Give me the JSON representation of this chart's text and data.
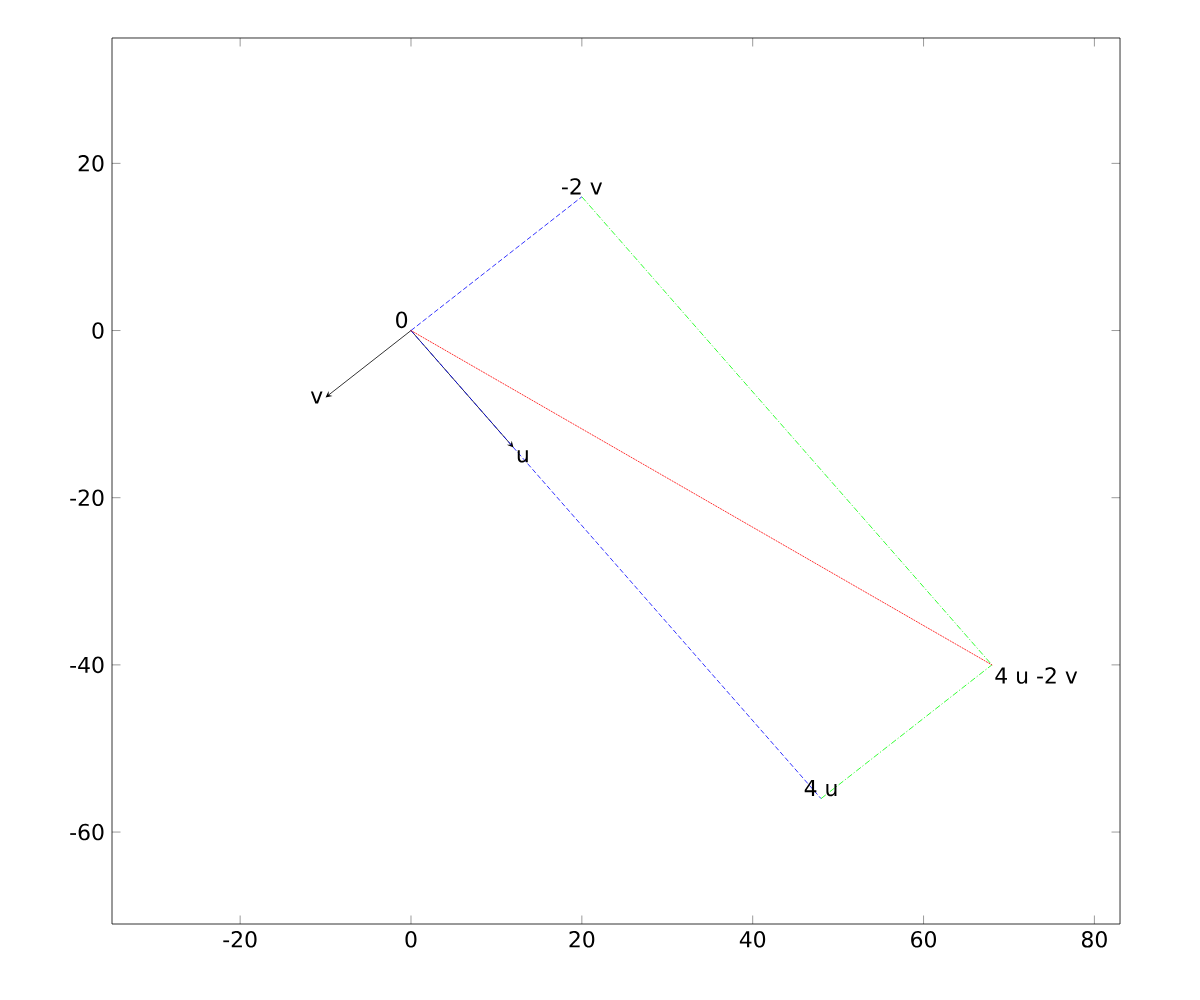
{
  "chart_data": {
    "type": "line",
    "series": [
      {
        "x": [
          0,
          -10
        ],
        "values": [
          0,
          -8
        ],
        "color": "#000000",
        "line_style": "solid"
      },
      {
        "x": [
          0,
          12
        ],
        "values": [
          0,
          -14
        ],
        "color": "#000000",
        "line_style": "solid"
      },
      {
        "x": [
          0,
          20
        ],
        "values": [
          0,
          16
        ],
        "color": "#0000ff",
        "line_style": "dashed"
      },
      {
        "x": [
          0,
          48
        ],
        "values": [
          0,
          -56
        ],
        "color": "#0000ff",
        "line_style": "dashed"
      },
      {
        "x": [
          20,
          68
        ],
        "values": [
          16,
          -40
        ],
        "color": "#00ff00",
        "line_style": "dashdot"
      },
      {
        "x": [
          48,
          68
        ],
        "values": [
          -56,
          -40
        ],
        "color": "#00ff00",
        "line_style": "dashdot"
      },
      {
        "x": [
          0,
          68
        ],
        "values": [
          0,
          -40
        ],
        "color": "#ff0000",
        "line_style": "dotted"
      }
    ],
    "annotations": [
      {
        "text": "0",
        "x": 0,
        "y": 0
      },
      {
        "text": "v",
        "x": -10,
        "y": -8
      },
      {
        "text": "u",
        "x": 12,
        "y": -14
      },
      {
        "text": "-2 v",
        "x": 20,
        "y": 16
      },
      {
        "text": "4 u",
        "x": 48,
        "y": -56
      },
      {
        "text": "4 u -2 v",
        "x": 68,
        "y": -40
      }
    ],
    "xlim": [
      -35,
      83
    ],
    "ylim": [
      -71,
      35
    ],
    "xticks": [
      -20,
      0,
      20,
      40,
      60,
      80
    ],
    "yticks": [
      -60,
      -40,
      -20,
      0,
      20
    ]
  }
}
